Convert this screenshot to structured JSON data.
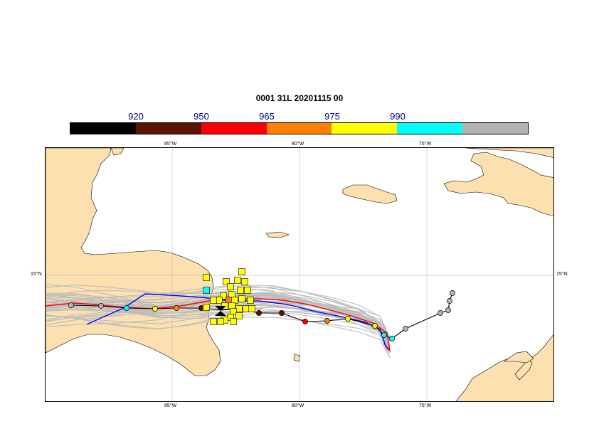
{
  "title": "0001 31L 20201115 00",
  "colorbar": {
    "labels": [
      "920",
      "950",
      "965",
      "975",
      "990"
    ],
    "colors": [
      "#000000",
      "#5c1200",
      "#ff0000",
      "#ff8000",
      "#ffff00",
      "#00ffff",
      "#b4b4b4"
    ]
  },
  "axes": {
    "lon_labels": [
      "85°W",
      "80°W",
      "75°W"
    ],
    "lat_labels": [
      "15°N"
    ]
  },
  "colors": {
    "land": "#fce0b0",
    "ensemble_tracks": "#bdbdbd",
    "control_track": "#ff0000",
    "hres_track": "#0000ff",
    "ensemble_mean": "#000000",
    "grid": "#b0b0b0"
  }
}
